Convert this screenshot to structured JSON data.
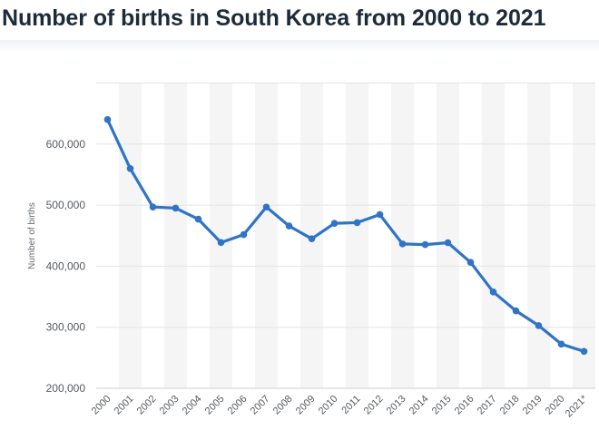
{
  "title": "Number of births in South Korea from 2000 to 2021",
  "chart_data": {
    "type": "line",
    "title": "Number of births in South Korea from 2000 to 2021",
    "xlabel": "",
    "ylabel": "Number of births",
    "categories": [
      "2000",
      "2001",
      "2002",
      "2003",
      "2004",
      "2005",
      "2006",
      "2007",
      "2008",
      "2009",
      "2010",
      "2011",
      "2012",
      "2013",
      "2014",
      "2015",
      "2016",
      "2017",
      "2018",
      "2019",
      "2020",
      "2021*"
    ],
    "values": [
      640089,
      559934,
      496911,
      495036,
      476958,
      438707,
      451759,
      496822,
      465892,
      444849,
      470171,
      471265,
      484550,
      436455,
      435435,
      438420,
      406243,
      357771,
      326822,
      302676,
      272337,
      260500
    ],
    "y_ticks": [
      200000,
      300000,
      400000,
      500000,
      600000
    ],
    "y_tick_labels": [
      "200,000",
      "300,000",
      "400,000",
      "500,000",
      "600,000"
    ],
    "ylim": [
      200000,
      700000
    ],
    "grid": true,
    "legend": "none",
    "series_color": "#2f74c7"
  }
}
